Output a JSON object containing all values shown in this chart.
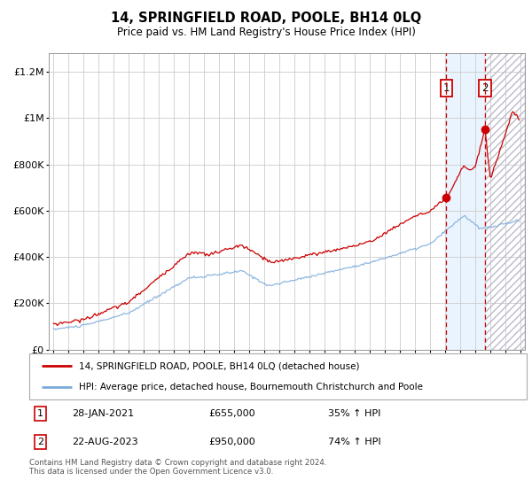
{
  "title": "14, SPRINGFIELD ROAD, POOLE, BH14 0LQ",
  "subtitle": "Price paid vs. HM Land Registry's House Price Index (HPI)",
  "ylabel_ticks": [
    "£0",
    "£200K",
    "£400K",
    "£600K",
    "£800K",
    "£1M",
    "£1.2M"
  ],
  "ytick_vals": [
    0,
    200000,
    400000,
    600000,
    800000,
    1000000,
    1200000
  ],
  "ylim": [
    0,
    1280000
  ],
  "xlim_start": 1994.7,
  "xlim_end": 2026.3,
  "red_line_color": "#cc0000",
  "blue_line_color": "#7aabdb",
  "sale1_x": 2021.08,
  "sale1_y": 655000,
  "sale2_x": 2023.64,
  "sale2_y": 950000,
  "vline1_x": 2021.08,
  "vline2_x": 2023.64,
  "shade_start": 2021.08,
  "shade_end": 2023.64,
  "hatch_start": 2023.64,
  "hatch_end": 2026.3,
  "legend_line1": "14, SPRINGFIELD ROAD, POOLE, BH14 0LQ (detached house)",
  "legend_line2": "HPI: Average price, detached house, Bournemouth Christchurch and Poole",
  "footnote": "Contains HM Land Registry data © Crown copyright and database right 2024.\nThis data is licensed under the Open Government Licence v3.0."
}
